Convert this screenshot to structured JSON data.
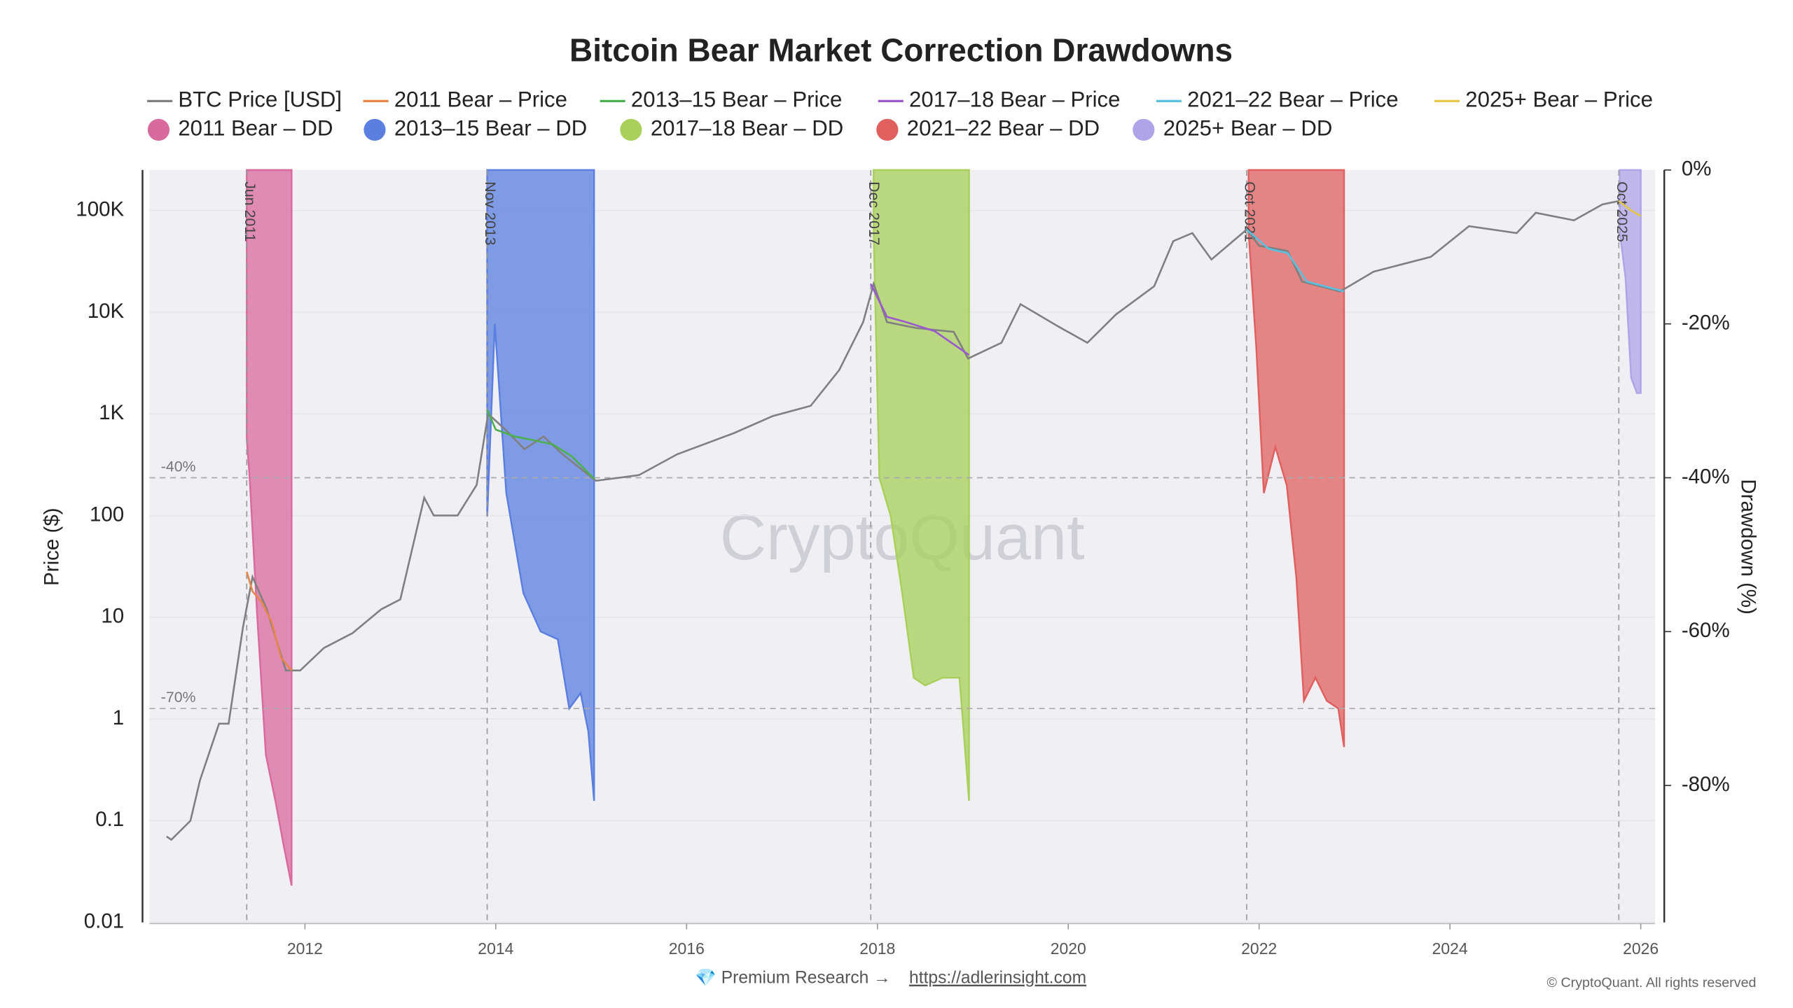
{
  "chart_data": {
    "type": "line",
    "title": "Bitcoin Bear Market Correction Drawdowns",
    "y_label": "Price ($)",
    "y2_label": "Drawdown (%)",
    "watermark": "CryptoQuant",
    "footer": "💎 Premium Research →",
    "footer_link": "https://adlerinsight.com",
    "copyright": "© CryptoQuant. All rights reserved",
    "ylog": true,
    "grid": true,
    "xlim": [
      2010.37,
      2026.15
    ],
    "xticks": [
      2012,
      2014,
      2016,
      2018,
      2020,
      2022,
      2024,
      2026
    ],
    "ylim": [
      0.01,
      250000
    ],
    "yticks": [
      0.01,
      0.1,
      1,
      10,
      100,
      {
        "value": 1000,
        "label": "1K"
      },
      {
        "value": 10000,
        "label": "10K"
      },
      {
        "value": 100000,
        "label": "100K"
      }
    ],
    "y2lim": [
      -97.8,
      0
    ],
    "y2ticks": [
      {
        "value": 0,
        "label": "0%"
      },
      {
        "value": -20,
        "label": "-20%"
      },
      {
        "value": -40,
        "label": "-40%"
      },
      {
        "value": -60,
        "label": "-60%"
      },
      {
        "value": -80,
        "label": "-80%"
      }
    ],
    "ref_lines": [
      {
        "value": -40,
        "label": "-40%"
      },
      {
        "value": -70,
        "label": "-70%"
      }
    ],
    "events": [
      {
        "x": 2011.39,
        "label": "Jun 2011"
      },
      {
        "x": 2013.91,
        "label": "Nov 2013"
      },
      {
        "x": 2017.93,
        "label": "Dec 2017"
      },
      {
        "x": 2021.87,
        "label": "Oct 2021"
      },
      {
        "x": 2025.77,
        "label": "Oct 2025"
      }
    ],
    "series": [
      {
        "name": "2011 Bear – DD",
        "style": "area",
        "axis": "y2",
        "color": "#d96a9e",
        "x": [
          2011.39,
          2011.42,
          2011.5,
          2011.59,
          2011.69,
          2011.78,
          2011.86
        ],
        "values": [
          -35,
          -40,
          -58,
          -76,
          -82,
          -88,
          -93
        ]
      },
      {
        "name": "2013–15 Bear – DD",
        "style": "area",
        "axis": "y2",
        "color": "#5b7fe0",
        "x": [
          2013.91,
          2013.99,
          2014.11,
          2014.29,
          2014.47,
          2014.65,
          2014.77,
          2014.89,
          2014.97,
          2015.03
        ],
        "values": [
          -45,
          -20,
          -42,
          -55,
          -60,
          -61,
          -70,
          -68,
          -73,
          -82
        ]
      },
      {
        "name": "2017–18 Bear – DD",
        "style": "area",
        "axis": "y2",
        "color": "#a8d05a",
        "x": [
          2017.96,
          2018.02,
          2018.14,
          2018.26,
          2018.38,
          2018.5,
          2018.68,
          2018.86,
          2018.96
        ],
        "values": [
          -8,
          -40,
          -45,
          -55,
          -66,
          -67,
          -66,
          -66,
          -82
        ]
      },
      {
        "name": "2021–22 Bear – DD",
        "style": "area",
        "axis": "y2",
        "color": "#e06060",
        "x": [
          2021.89,
          2021.97,
          2022.05,
          2022.17,
          2022.29,
          2022.39,
          2022.47,
          2022.59,
          2022.71,
          2022.83,
          2022.89
        ],
        "values": [
          -8,
          -23,
          -42,
          -36,
          -41,
          -53,
          -69,
          -66,
          -69,
          -70,
          -75
        ]
      },
      {
        "name": "2025+ Bear – DD",
        "style": "area",
        "axis": "y2",
        "color": "#b0a4e8",
        "x": [
          2025.78,
          2025.84,
          2025.9,
          2025.96,
          2026.0
        ],
        "values": [
          -8,
          -14,
          -27,
          -29,
          -29
        ]
      },
      {
        "name": "BTC Price [USD]",
        "style": "line",
        "color": "#808080",
        "x": [
          2010.55,
          2010.6,
          2010.8,
          2010.9,
          2011.1,
          2011.2,
          2011.35,
          2011.45,
          2011.6,
          2011.8,
          2011.95,
          2012.2,
          2012.5,
          2012.8,
          2013.0,
          2013.25,
          2013.35,
          2013.6,
          2013.8,
          2013.92,
          2014.1,
          2014.3,
          2014.5,
          2014.7,
          2015.05,
          2015.5,
          2015.9,
          2016.5,
          2016.9,
          2017.3,
          2017.6,
          2017.85,
          2017.96,
          2018.1,
          2018.4,
          2018.8,
          2018.95,
          2019.3,
          2019.5,
          2019.9,
          2020.2,
          2020.5,
          2020.9,
          2021.1,
          2021.3,
          2021.5,
          2021.87,
          2022.0,
          2022.3,
          2022.45,
          2022.85,
          2023.2,
          2023.8,
          2024.2,
          2024.7,
          2024.9,
          2025.3,
          2025.6,
          2025.77,
          2025.9,
          2026.0
        ],
        "values": [
          0.07,
          0.065,
          0.1,
          0.25,
          0.9,
          0.9,
          8,
          25,
          12,
          3,
          3,
          5,
          7,
          12,
          15,
          150,
          100,
          100,
          200,
          1000,
          700,
          450,
          600,
          400,
          220,
          250,
          400,
          650,
          950,
          1200,
          2700,
          8000,
          19000,
          8000,
          7000,
          6400,
          3500,
          5000,
          12000,
          7200,
          5000,
          9500,
          18000,
          50000,
          60000,
          33000,
          65000,
          45000,
          40000,
          20000,
          16000,
          25000,
          35000,
          70000,
          60000,
          95000,
          80000,
          115000,
          124000,
          100000,
          88000
        ]
      },
      {
        "name": "2011 Bear – Price",
        "style": "line",
        "color": "#e8864a",
        "x": [
          2011.39,
          2011.45,
          2011.55,
          2011.65,
          2011.75,
          2011.86
        ],
        "values": [
          28,
          18,
          14,
          9,
          4,
          3
        ]
      },
      {
        "name": "2013–15 Bear – Price",
        "style": "line",
        "color": "#4caf50",
        "x": [
          2013.91,
          2014.0,
          2014.2,
          2014.4,
          2014.6,
          2014.8,
          2015.03
        ],
        "values": [
          1100,
          700,
          600,
          550,
          500,
          380,
          230
        ]
      },
      {
        "name": "2017–18 Bear – Price",
        "style": "line",
        "color": "#9b59d0",
        "x": [
          2017.93,
          2018.1,
          2018.3,
          2018.6,
          2018.96
        ],
        "values": [
          19000,
          9000,
          8000,
          6500,
          3800
        ]
      },
      {
        "name": "2021–22 Bear – Price",
        "style": "line",
        "color": "#5bc0de",
        "x": [
          2021.87,
          2022.1,
          2022.3,
          2022.5,
          2022.89
        ],
        "values": [
          65000,
          42000,
          38000,
          20000,
          16000
        ]
      },
      {
        "name": "2025+ Bear – Price",
        "style": "line",
        "color": "#e6c84a",
        "x": [
          2025.77,
          2025.9,
          2026.0
        ],
        "values": [
          124000,
          100000,
          88000
        ]
      }
    ]
  }
}
